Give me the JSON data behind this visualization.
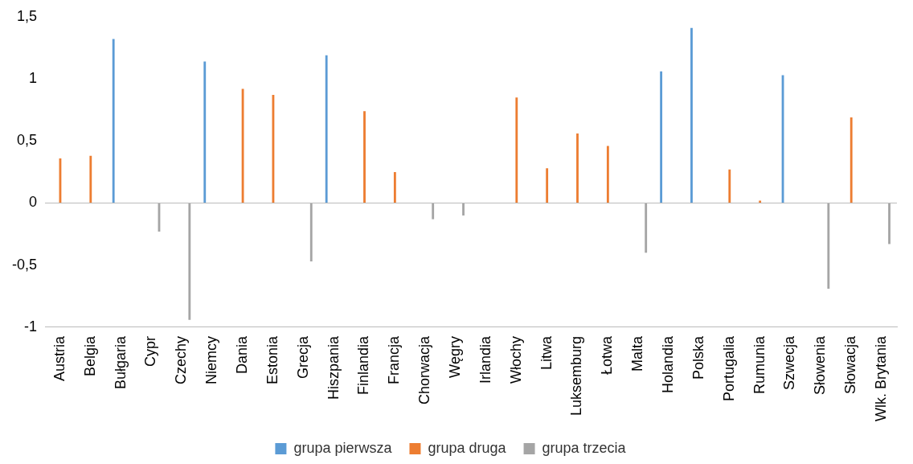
{
  "chart_data": {
    "type": "bar",
    "categories": [
      "Austria",
      "Belgia",
      "Bułgaria",
      "Cypr",
      "Czechy",
      "Niemcy",
      "Dania",
      "Estonia",
      "Grecja",
      "Hiszpania",
      "Finlandia",
      "Francja",
      "Chorwacja",
      "Węgry",
      "Irlandia",
      "Włochy",
      "Litwa",
      "Luksemburg",
      "Łotwa",
      "Malta",
      "Holandia",
      "Polska",
      "Portugalia",
      "Rumunia",
      "Szwecja",
      "Słowenia",
      "Słowacja",
      "Wlk. Brytania"
    ],
    "series": [
      {
        "name": "grupa pierwsza",
        "color": "#5b9bd5",
        "values": [
          null,
          null,
          1.32,
          null,
          null,
          1.14,
          null,
          null,
          null,
          1.19,
          null,
          null,
          null,
          null,
          null,
          null,
          null,
          null,
          null,
          null,
          1.06,
          1.41,
          null,
          null,
          1.03,
          null,
          null,
          null
        ]
      },
      {
        "name": "grupa druga",
        "color": "#ed7d31",
        "values": [
          0.36,
          0.38,
          null,
          null,
          null,
          null,
          0.92,
          0.87,
          null,
          null,
          0.74,
          0.25,
          null,
          null,
          null,
          0.85,
          0.28,
          0.56,
          0.46,
          null,
          null,
          null,
          0.27,
          0.02,
          null,
          null,
          0.69,
          null
        ]
      },
      {
        "name": "grupa trzecia",
        "color": "#a5a5a5",
        "values": [
          null,
          null,
          null,
          -0.23,
          -0.94,
          null,
          null,
          null,
          -0.47,
          null,
          null,
          null,
          -0.13,
          -0.1,
          null,
          null,
          null,
          null,
          null,
          -0.4,
          null,
          null,
          null,
          null,
          null,
          -0.69,
          null,
          -0.33
        ]
      }
    ],
    "ylim": [
      -1,
      1.5
    ],
    "yticks": [
      {
        "value": -1,
        "label": "-1"
      },
      {
        "value": -0.5,
        "label": "-0,5"
      },
      {
        "value": 0,
        "label": "0"
      },
      {
        "value": 0.5,
        "label": "0,5"
      },
      {
        "value": 1,
        "label": "1"
      },
      {
        "value": 1.5,
        "label": "1,5"
      }
    ],
    "legend": "bottom"
  }
}
